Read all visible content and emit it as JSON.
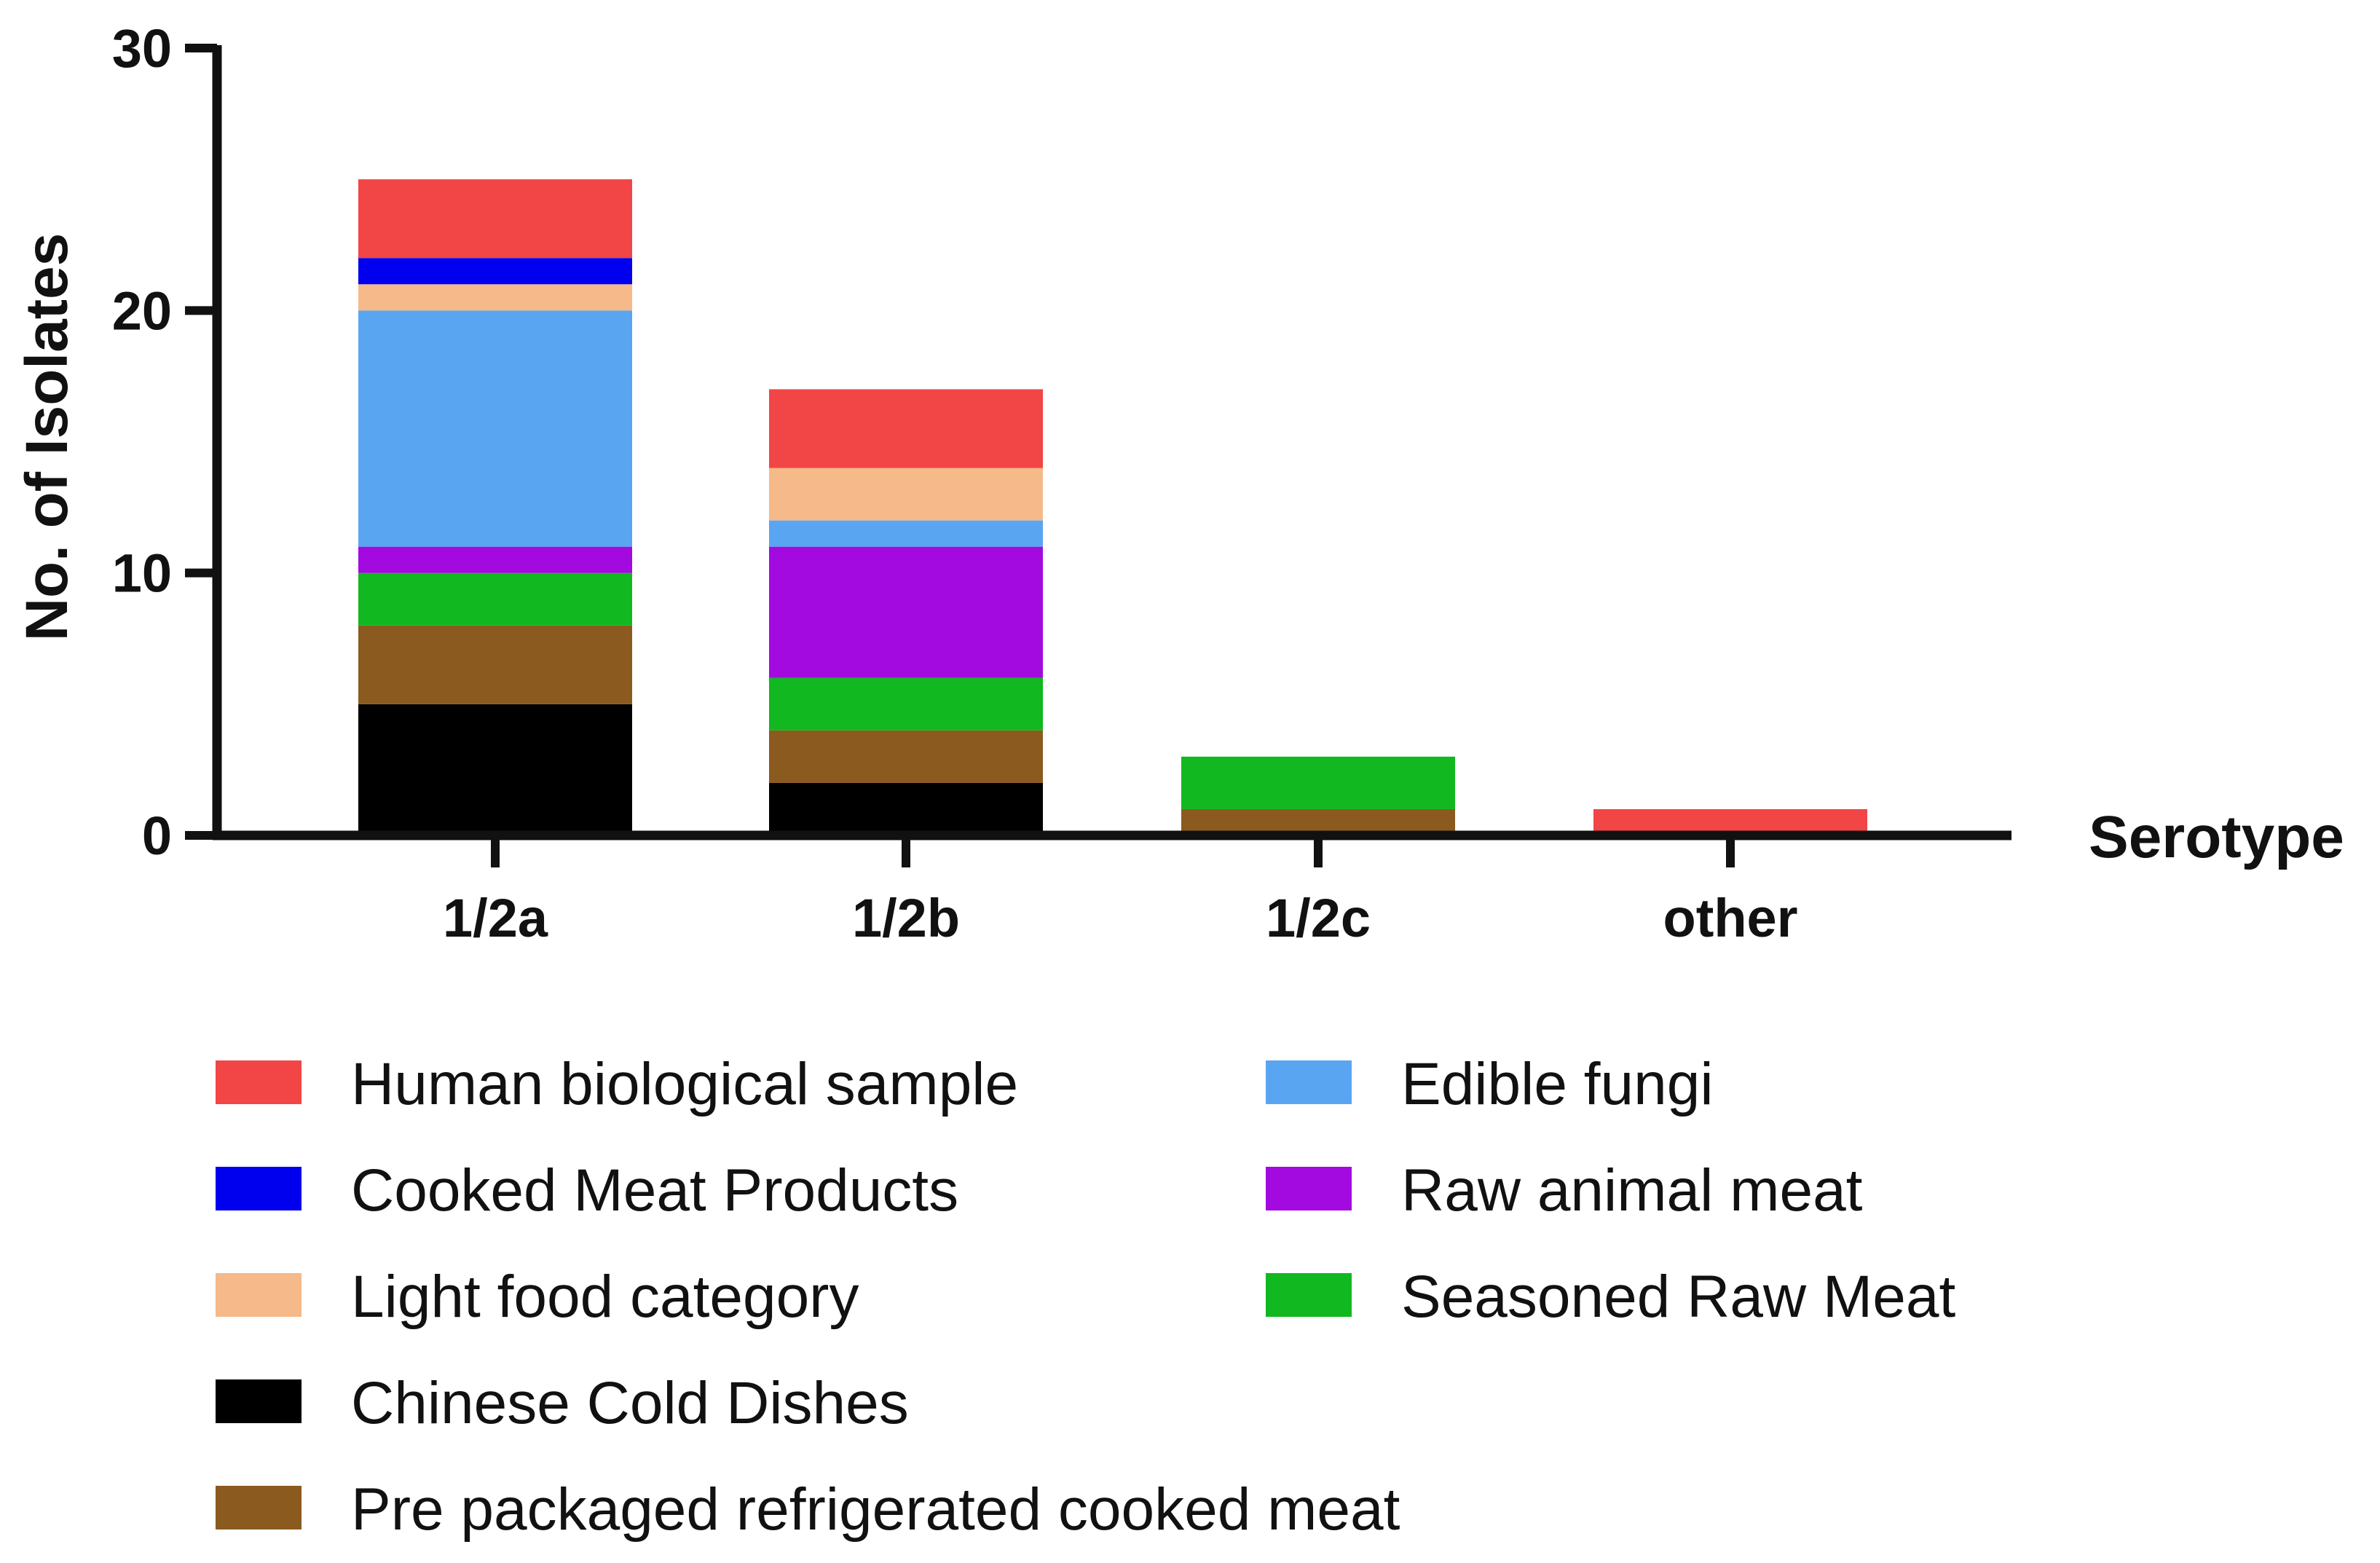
{
  "chart_data": {
    "type": "bar",
    "stacked": true,
    "categories": [
      "1/2a",
      "1/2b",
      "1/2c",
      "other"
    ],
    "xlabel": "Serotype",
    "ylabel": "No. of Isolates",
    "ylim": [
      0,
      30
    ],
    "yticks": [
      0,
      10,
      20,
      30
    ],
    "grid": false,
    "legend_position": "bottom",
    "series": [
      {
        "name": "Chinese Cold Dishes",
        "color": "#000000",
        "values": [
          5,
          2,
          0,
          0
        ]
      },
      {
        "name": "Pre packaged refrigerated cooked meat",
        "color": "#8B5A1F",
        "values": [
          3,
          2,
          1,
          0
        ]
      },
      {
        "name": "Seasoned Raw Meat",
        "color": "#11B81F",
        "values": [
          2,
          2,
          2,
          0
        ]
      },
      {
        "name": "Raw animal meat",
        "color": "#A20ADF",
        "values": [
          1,
          5,
          0,
          0
        ]
      },
      {
        "name": "Edible fungi",
        "color": "#5AA5F2",
        "values": [
          9,
          1,
          0,
          0
        ]
      },
      {
        "name": "Light food category",
        "color": "#F5B98A",
        "values": [
          1,
          2,
          0,
          0
        ]
      },
      {
        "name": "Cooked Meat Products",
        "color": "#0000EE",
        "values": [
          1,
          0,
          0,
          0
        ]
      },
      {
        "name": "Human biological sample",
        "color": "#F24546",
        "values": [
          3,
          3,
          0,
          1
        ]
      }
    ],
    "legend_order": [
      "Human biological sample",
      "Cooked Meat Products",
      "Light food category",
      "Chinese Cold Dishes",
      "Pre packaged refrigerated cooked meat",
      "Edible fungi",
      "Raw animal meat",
      "Seasoned Raw Meat"
    ]
  }
}
